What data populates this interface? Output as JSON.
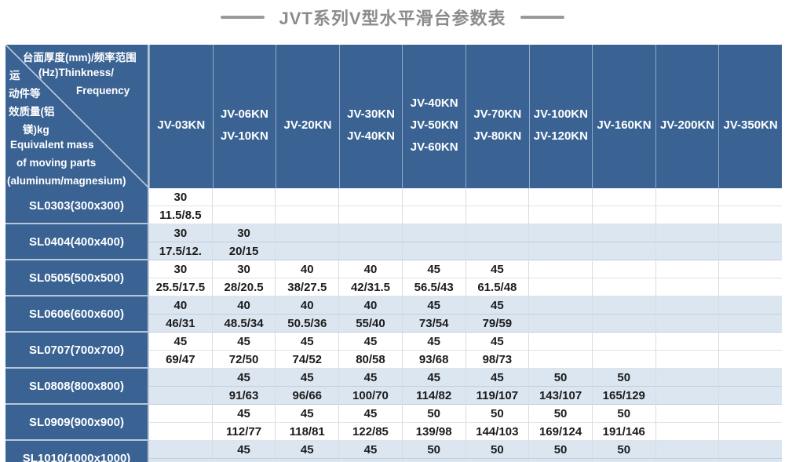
{
  "page": {
    "title": "JVT系列V型水平滑台参数表"
  },
  "table": {
    "corner": {
      "lines": [
        "台面厚度(mm)/频率范围",
        "运",
        "(Hz)Thinkness/",
        "动件等",
        "Frequency",
        "效质量(铝",
        "镁)kg",
        "Equivalent mass",
        "of moving parts",
        "(aluminum/magnesium)"
      ]
    },
    "columns": [
      {
        "labels": [
          "JV-03KN"
        ]
      },
      {
        "labels": [
          "JV-06KN",
          "JV-10KN"
        ]
      },
      {
        "labels": [
          "JV-20KN"
        ]
      },
      {
        "labels": [
          "JV-30KN",
          "JV-40KN"
        ]
      },
      {
        "labels": [
          "JV-40KN",
          "JV-50KN",
          "JV-60KN"
        ]
      },
      {
        "labels": [
          "JV-70KN",
          "JV-80KN"
        ]
      },
      {
        "labels": [
          "JV-100KN",
          "JV-120KN"
        ]
      },
      {
        "labels": [
          "JV-160KN"
        ]
      },
      {
        "labels": [
          "JV-200KN"
        ]
      },
      {
        "labels": [
          "JV-350KN"
        ]
      }
    ],
    "rows": [
      {
        "label": "SL0303(300x300)",
        "cells": [
          [
            "30",
            "11.5/8.5"
          ],
          [
            "",
            ""
          ],
          [
            "",
            ""
          ],
          [
            "",
            ""
          ],
          [
            "",
            ""
          ],
          [
            "",
            ""
          ],
          [
            "",
            ""
          ],
          [
            "",
            ""
          ],
          [
            "",
            ""
          ],
          [
            "",
            ""
          ]
        ]
      },
      {
        "label": "SL0404(400x400)",
        "cells": [
          [
            "30",
            "17.5/12."
          ],
          [
            "30",
            "20/15"
          ],
          [
            "",
            ""
          ],
          [
            "",
            ""
          ],
          [
            "",
            ""
          ],
          [
            "",
            ""
          ],
          [
            "",
            ""
          ],
          [
            "",
            ""
          ],
          [
            "",
            ""
          ],
          [
            "",
            ""
          ]
        ]
      },
      {
        "label": "SL0505(500x500)",
        "cells": [
          [
            "30",
            "25.5/17.5"
          ],
          [
            "30",
            "28/20.5"
          ],
          [
            "40",
            "38/27.5"
          ],
          [
            "40",
            "42/31.5"
          ],
          [
            "45",
            "56.5/43"
          ],
          [
            "45",
            "61.5/48"
          ],
          [
            "",
            ""
          ],
          [
            "",
            ""
          ],
          [
            "",
            ""
          ],
          [
            "",
            ""
          ]
        ]
      },
      {
        "label": "SL0606(600x600)",
        "cells": [
          [
            "40",
            "46/31"
          ],
          [
            "40",
            "48.5/34"
          ],
          [
            "40",
            "50.5/36"
          ],
          [
            "40",
            "55/40"
          ],
          [
            "45",
            "73/54"
          ],
          [
            "45",
            "79/59"
          ],
          [
            "",
            ""
          ],
          [
            "",
            ""
          ],
          [
            "",
            ""
          ],
          [
            "",
            ""
          ]
        ]
      },
      {
        "label": "SL0707(700x700)",
        "cells": [
          [
            "45",
            "69/47"
          ],
          [
            "45",
            "72/50"
          ],
          [
            "45",
            "74/52"
          ],
          [
            "45",
            "80/58"
          ],
          [
            "45",
            "93/68"
          ],
          [
            "45",
            "98/73"
          ],
          [
            "",
            ""
          ],
          [
            "",
            ""
          ],
          [
            "",
            ""
          ],
          [
            "",
            ""
          ]
        ]
      },
      {
        "label": "SL0808(800x800)",
        "cells": [
          [
            "",
            ""
          ],
          [
            "45",
            "91/63"
          ],
          [
            "45",
            "96/66"
          ],
          [
            "45",
            "100/70"
          ],
          [
            "45",
            "114/82"
          ],
          [
            "45",
            "119/107"
          ],
          [
            "50",
            "143/107"
          ],
          [
            "50",
            "165/129"
          ],
          [
            "",
            ""
          ],
          [
            "",
            ""
          ]
        ]
      },
      {
        "label": "SL0909(900x900)",
        "cells": [
          [
            "",
            ""
          ],
          [
            "45",
            "112/77"
          ],
          [
            "45",
            "118/81"
          ],
          [
            "45",
            "122/85"
          ],
          [
            "50",
            "139/98"
          ],
          [
            "50",
            "144/103"
          ],
          [
            "50",
            "169/124"
          ],
          [
            "50",
            "191/146"
          ],
          [
            "",
            ""
          ],
          [
            "",
            ""
          ]
        ]
      },
      {
        "label": "SL1010(1000x1000)",
        "cells": [
          [
            "",
            ""
          ],
          [
            "45",
            ""
          ],
          [
            "45",
            ""
          ],
          [
            "45",
            ""
          ],
          [
            "50",
            ""
          ],
          [
            "50",
            ""
          ],
          [
            "50",
            ""
          ],
          [
            "50",
            ""
          ],
          [
            "",
            ""
          ],
          [
            "",
            ""
          ]
        ]
      }
    ],
    "colors": {
      "header_blue": "#3a6394",
      "row_alt_blue": "#dce6f1",
      "row_white": "#ffffff",
      "title_gray": "#8c8c8c",
      "value_text": "#1b1b1b"
    }
  }
}
